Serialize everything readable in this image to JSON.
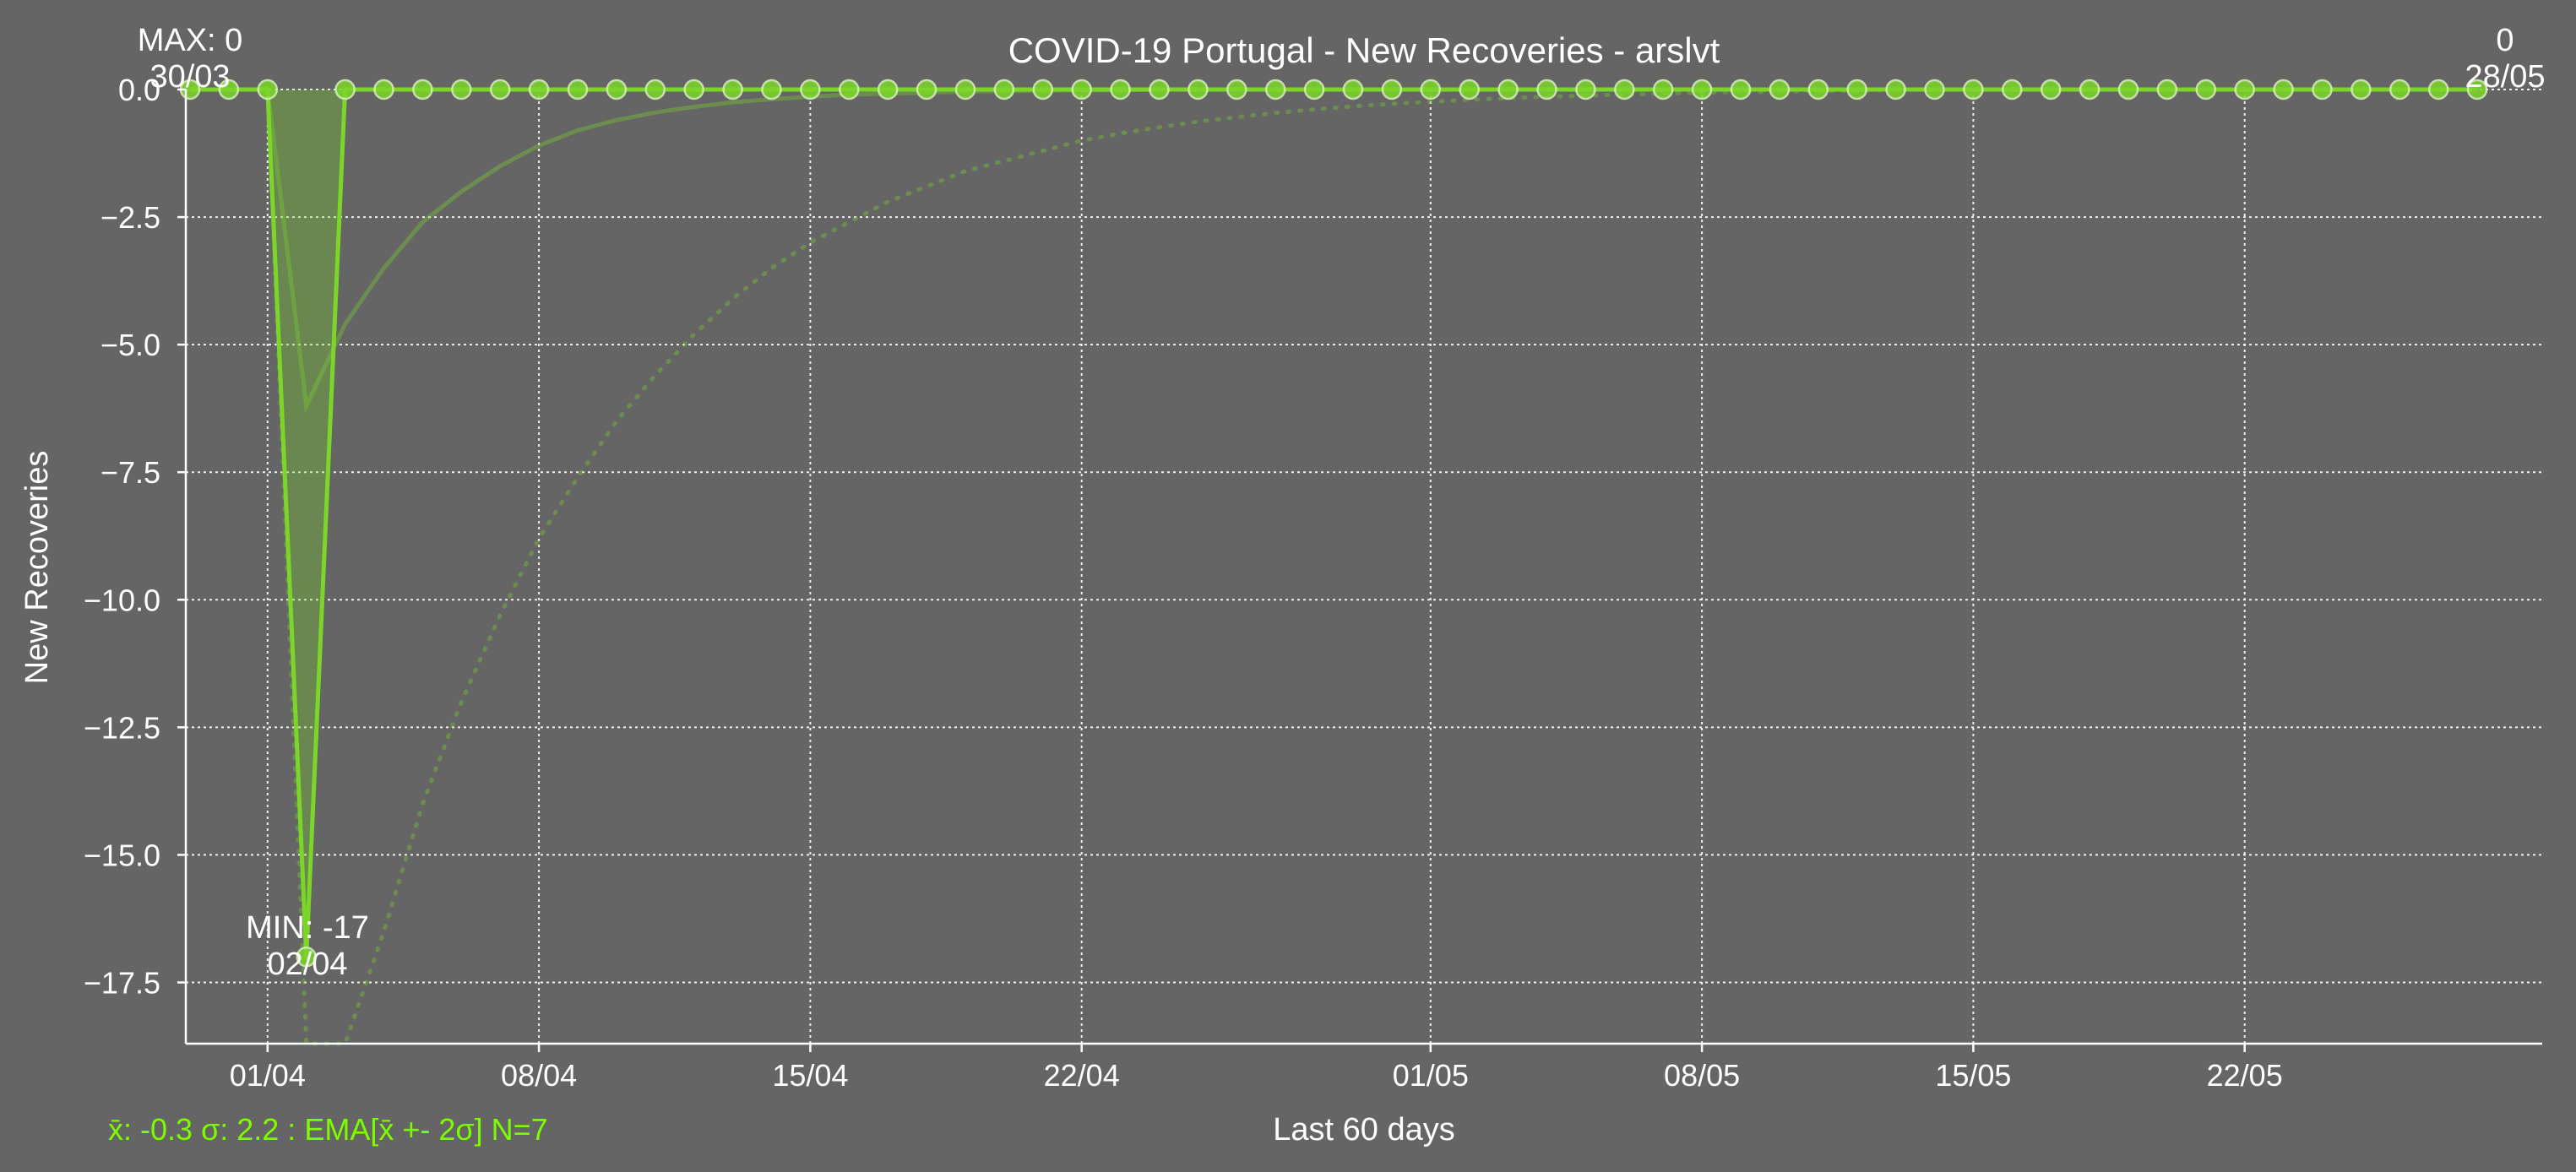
{
  "colors": {
    "background": "#646564",
    "series": "#7CD62A",
    "marker_edge": "#D8F2B8",
    "text": "#FFFFFF",
    "grid": "#FFFFFF",
    "footer": "#7CFC00"
  },
  "chart_data": {
    "type": "line",
    "title": "COVID-19 Portugal - New Recoveries - arslvt",
    "xlabel": "Last 60 days",
    "ylabel": "New Recoveries",
    "footer": "x̄: -0.3 σ: 2.2 : EMA[x̄ +- 2σ] N=7",
    "x_ticks": [
      "01/04",
      "08/04",
      "15/04",
      "22/04",
      "01/05",
      "08/05",
      "15/05",
      "22/05"
    ],
    "y_ticks": [
      0,
      -2.5,
      -5,
      -7.5,
      -10,
      -12.5,
      -15,
      -17.5
    ],
    "y_tick_labels": [
      "0.0",
      "−2.5",
      "−5.0",
      "−7.5",
      "−10.0",
      "−12.5",
      "−15.0",
      "−17.5"
    ],
    "ylim": [
      -18.7,
      0
    ],
    "grid": true,
    "x": [
      "30/03",
      "31/03",
      "01/04",
      "02/04",
      "03/04",
      "04/04",
      "05/04",
      "06/04",
      "07/04",
      "08/04",
      "09/04",
      "10/04",
      "11/04",
      "12/04",
      "13/04",
      "14/04",
      "15/04",
      "16/04",
      "17/04",
      "18/04",
      "19/04",
      "20/04",
      "21/04",
      "22/04",
      "23/04",
      "24/04",
      "25/04",
      "26/04",
      "27/04",
      "28/04",
      "29/04",
      "30/04",
      "01/05",
      "02/05",
      "03/05",
      "04/05",
      "05/05",
      "06/05",
      "07/05",
      "08/05",
      "09/05",
      "10/05",
      "11/05",
      "12/05",
      "13/05",
      "14/05",
      "15/05",
      "16/05",
      "17/05",
      "18/05",
      "19/05",
      "20/05",
      "21/05",
      "22/05",
      "23/05",
      "24/05",
      "25/05",
      "26/05",
      "27/05",
      "28/05"
    ],
    "series": [
      {
        "values": [
          0,
          0,
          0,
          -17,
          0,
          0,
          0,
          0,
          0,
          0,
          0,
          0,
          0,
          0,
          0,
          0,
          0,
          0,
          0,
          0,
          0,
          0,
          0,
          0,
          0,
          0,
          0,
          0,
          0,
          0,
          0,
          0,
          0,
          0,
          0,
          0,
          0,
          0,
          0,
          0,
          0,
          0,
          0,
          0,
          0,
          0,
          0,
          0,
          0,
          0,
          0,
          0,
          0,
          0,
          0,
          0,
          0,
          0,
          0,
          0
        ]
      }
    ],
    "ema": [
      0,
      0,
      0,
      -6.2,
      -4.6,
      -3.5,
      -2.6,
      -2.0,
      -1.5,
      -1.1,
      -0.8,
      -0.6,
      -0.45,
      -0.34,
      -0.25,
      -0.19,
      -0.14,
      -0.1,
      -0.08,
      -0.06,
      -0.04,
      -0.03,
      -0.02,
      -0.015,
      -0.01,
      0,
      0,
      0,
      0,
      0,
      0,
      0,
      0,
      0,
      0,
      0,
      0,
      0,
      0,
      0,
      0,
      0,
      0,
      0,
      0,
      0,
      0,
      0,
      0,
      0,
      0,
      0,
      0,
      0,
      0,
      0,
      0,
      0,
      0,
      0
    ],
    "ema_lower": [
      0,
      0,
      0,
      -21,
      -19,
      -16.5,
      -14.0,
      -12.0,
      -10.3,
      -8.8,
      -7.6,
      -6.5,
      -5.6,
      -4.8,
      -4.1,
      -3.5,
      -3.0,
      -2.6,
      -2.2,
      -1.9,
      -1.6,
      -1.4,
      -1.2,
      -1.0,
      -0.86,
      -0.74,
      -0.63,
      -0.54,
      -0.46,
      -0.39,
      -0.33,
      -0.28,
      -0.24,
      -0.2,
      -0.17,
      -0.14,
      -0.12,
      -0.1,
      -0.08,
      -0.06,
      -0.05,
      -0.04,
      -0.03,
      -0.02,
      -0.01,
      0,
      0,
      0,
      0,
      0,
      0,
      0,
      0,
      0,
      0,
      0,
      0,
      0,
      0,
      0
    ],
    "annotations": {
      "max_label": "MAX: 0",
      "max_date": "30/03",
      "min_label": "MIN: -17",
      "min_date": "02/04",
      "last_value": "0",
      "last_date": "28/05"
    }
  }
}
